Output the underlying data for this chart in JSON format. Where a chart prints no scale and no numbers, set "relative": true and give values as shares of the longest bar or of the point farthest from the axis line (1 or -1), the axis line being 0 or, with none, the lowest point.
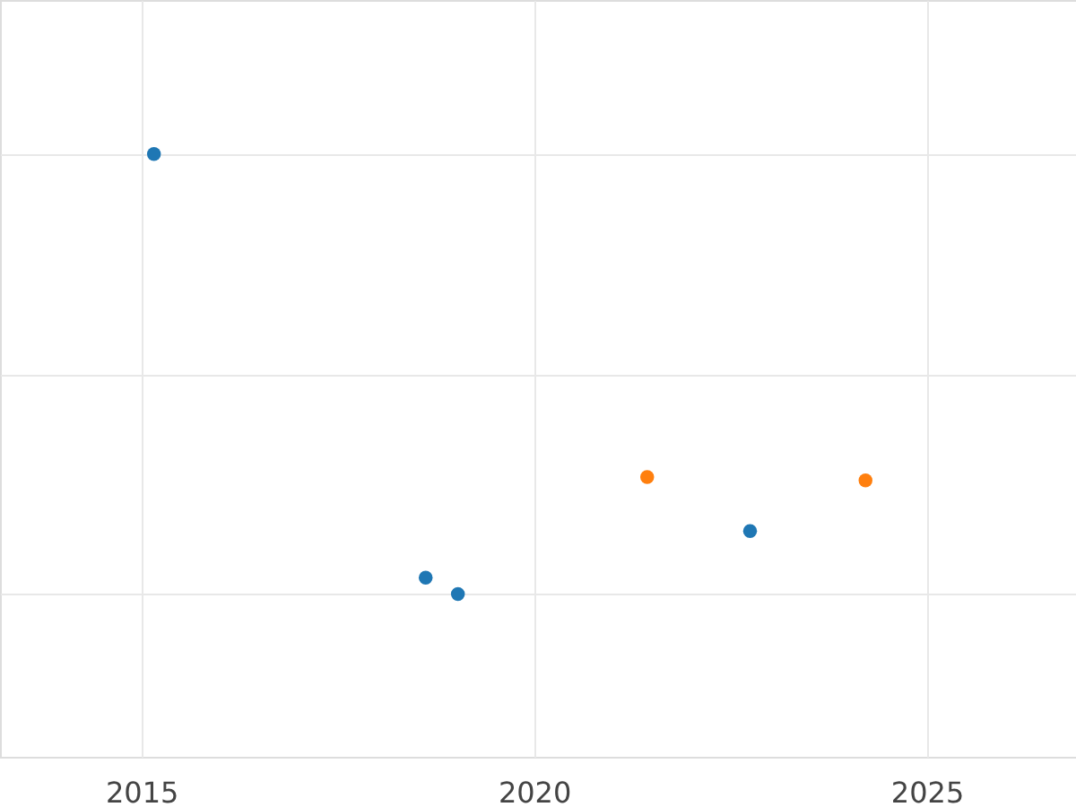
{
  "chart_data": {
    "type": "scatter",
    "relative": true,
    "grid": true,
    "marker": "circle",
    "xlim": [
      2013.2,
      2026.9
    ],
    "xticks": [
      2015,
      2020,
      2025
    ],
    "series": [
      {
        "color": "#1f77b4",
        "x": [
          2015.16,
          2018.62,
          2019.03,
          2022.75
        ],
        "values": [
          1,
          0.037,
          0,
          0.143
        ]
      },
      {
        "color": "#ff7f0e",
        "x": [
          2021.44,
          2024.22
        ],
        "values": [
          0.266,
          0.258
        ]
      }
    ]
  }
}
